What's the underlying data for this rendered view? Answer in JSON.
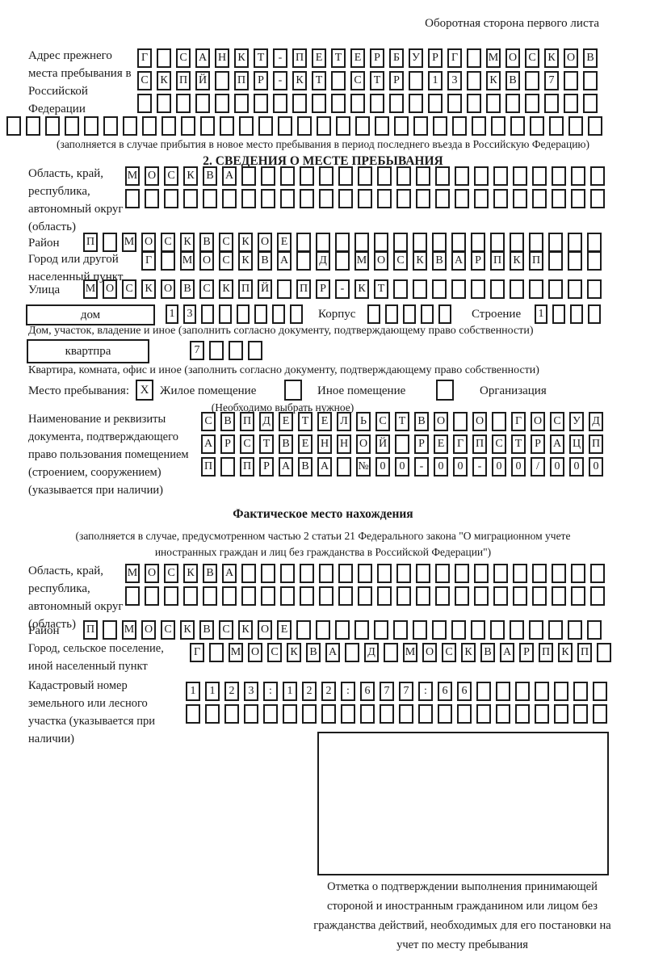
{
  "page": {
    "header_note": "Оборотная сторона первого листа"
  },
  "prev_address": {
    "label": "Адрес прежнего места пребывания в Российской Федерации",
    "rows": [
      {
        "chars": "Г САНКТ-ПЕТЕРБУРГ МОСКОВ",
        "len": 24
      },
      {
        "chars": "СКПЙ ПР-КТ СТР 13 КВ 7",
        "len": 24
      },
      {
        "chars": "",
        "len": 24
      },
      {
        "chars": "",
        "len": 31
      }
    ],
    "fill_note": "(заполняется в случае прибытия в новое место пребывания в период последнего въезда в Российскую Федерацию)"
  },
  "section2": {
    "title": "2. СВЕДЕНИЯ О МЕСТЕ ПРЕБЫВАНИЯ",
    "region": {
      "label": "Область, край, республика, автономный округ (область)",
      "rows": [
        {
          "chars": "МОСКВА",
          "len": 25
        },
        {
          "chars": "",
          "len": 25
        }
      ]
    },
    "district": {
      "label": "Район",
      "row": {
        "chars": "П МОСКВСКОЕ",
        "len": 27
      }
    },
    "city": {
      "label": "Город или другой населенный пункт",
      "row": {
        "chars": "Г МОСКВА Д МОСКВАРПКП",
        "len": 24
      }
    },
    "street": {
      "label": "Улица",
      "row": {
        "chars": "МОСКОВСКПЙ ПР-КТ",
        "len": 27
      }
    },
    "house": {
      "box_label": "дом",
      "number_row": {
        "chars": "13",
        "len": 8
      },
      "korpus_label": "Корпус",
      "korpus_row": {
        "chars": "",
        "len": 5
      },
      "stroenie_label": "Строение",
      "stroenie_row": {
        "chars": "1",
        "len": 4
      },
      "note": "Дом, участок, владение и иное (заполнить согласно документу, подтверждающему право собственности)"
    },
    "apartment": {
      "box_label": "квартпра",
      "number_row": {
        "chars": "7",
        "len": 4
      },
      "note": "Квартира, комната, офис и иное (заполнить согласно документу, подтверждающему право собственности)"
    },
    "stay_type": {
      "label": "Место пребывания:",
      "options": [
        {
          "label": "Жилое помещение",
          "checked": "X"
        },
        {
          "label": "Иное помещение",
          "checked": ""
        },
        {
          "label": "Организация",
          "checked": ""
        }
      ],
      "note": "(Необходимо выбрать нужное)"
    },
    "doc": {
      "label": "Наименование и реквизиты документа, подтверждающего право пользования помещением (строением, сооружением) (указывается при наличии)",
      "rows": [
        {
          "chars": "СВПДЕТЕЛЬСТВО О ГОСУД",
          "len": 21
        },
        {
          "chars": "АРСТВЕННОЙ РЕГПСТРАЦП",
          "len": 21
        },
        {
          "chars": "П ПРАВА №00-00-00/000",
          "len": 21
        }
      ]
    }
  },
  "actual_location": {
    "title": "Фактическое место нахождения",
    "fill_note": "(заполняется в случае, предусмотренном частью 2 статьи 21 Федерального закона \"О миграционном учете иностранных граждан и лиц без гражданства в Российской Федерации\")",
    "region": {
      "label": "Область, край, республика, автономный округ (область)",
      "rows": [
        {
          "chars": "МОСКВА",
          "len": 25
        },
        {
          "chars": "",
          "len": 25
        }
      ]
    },
    "district": {
      "label": "Район",
      "row": {
        "chars": "П МОСКВСКОЕ",
        "len": 27
      }
    },
    "city": {
      "label": "Город, сельское поселение, иной населенный пункт",
      "row": {
        "chars": "Г МОСКВА Д МОСКВАРПКП",
        "len": 22
      }
    },
    "cadastral": {
      "label": "Кадастровый номер земельного или лесного участка (указывается при наличии)",
      "rows": [
        {
          "chars": "1123:122:677:66",
          "len": 22
        },
        {
          "chars": "",
          "len": 22
        }
      ]
    },
    "stamp_note": "Отметка о подтверждении выполнения принимающей стороной и иностранным гражданином или лицом без гражданства действий, необходимых для его постановки на учет по месту пребывания"
  }
}
